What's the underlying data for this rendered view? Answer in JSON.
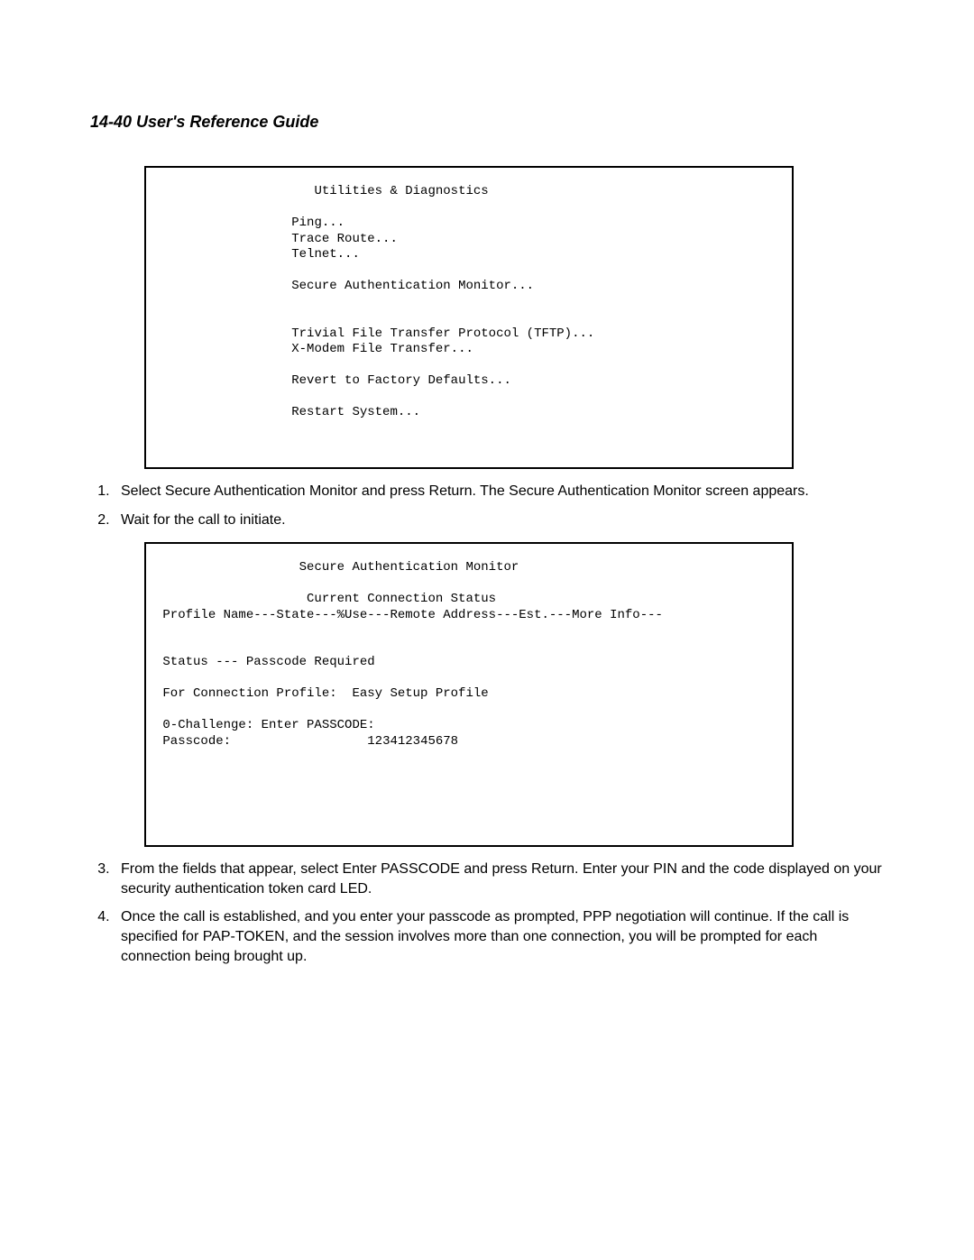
{
  "header": "14-40  User's Reference Guide",
  "terminal1": {
    "title": "Utilities & Diagnostics",
    "lines_block1": [
      "Ping...",
      "Trace Route...",
      "Telnet..."
    ],
    "line_secure": "Secure Authentication Monitor...",
    "lines_block2": [
      "Trivial File Transfer Protocol (TFTP)...",
      "X-Modem File Transfer..."
    ],
    "line_revert": "Revert to Factory Defaults...",
    "line_restart": "Restart System..."
  },
  "steps_a": [
    "Select Secure Authentication Monitor and press Return. The Secure Authentication Monitor screen appears.",
    "Wait for the call to initiate."
  ],
  "terminal2": {
    "title": "Secure Authentication Monitor",
    "subtitle": "Current Connection Status",
    "header_row": "Profile Name---State---%Use---Remote Address---Est.---More Info---",
    "status_line": "Status --- Passcode Required",
    "profile_line": "For Connection Profile:  Easy Setup Profile",
    "challenge_line": "0-Challenge: Enter PASSCODE:",
    "passcode_label": "Passcode:",
    "passcode_value": "123412345678"
  },
  "steps_b": [
    "From the fields that appear, select Enter PASSCODE and press Return. Enter your PIN and the code displayed on your security authentication token card LED.",
    "Once the call is established, and you enter your passcode as prompted, PPP negotiation will continue. If the call is specified for PAP-TOKEN, and the session involves more than one connection, you will be prompted for each connection being brought up."
  ]
}
